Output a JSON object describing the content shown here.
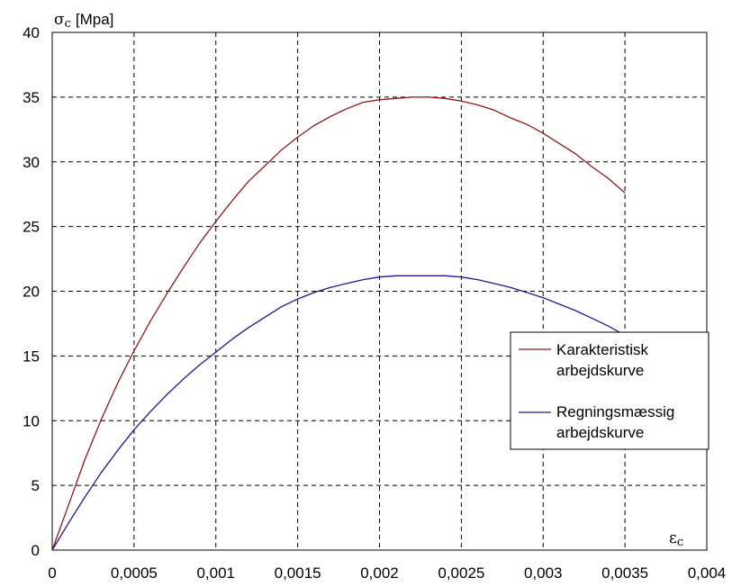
{
  "chart_data": {
    "type": "line",
    "ylabel": {
      "symbol": "σ",
      "subscript": "c",
      "unit": "[Mpa]"
    },
    "xlabel": {
      "symbol": "ε",
      "subscript": "c"
    },
    "xlim": [
      0,
      0.004
    ],
    "ylim": [
      0,
      40
    ],
    "xticks": [
      "0",
      "0,0005",
      "0,001",
      "0,0015",
      "0,002",
      "0,0025",
      "0,003",
      "0,0035",
      "0,004"
    ],
    "yticks": [
      "0",
      "5",
      "10",
      "15",
      "20",
      "25",
      "30",
      "35",
      "40"
    ],
    "grid": true,
    "legend_position": "right",
    "series": [
      {
        "name": [
          "Karakteristisk",
          "arbejdskurve"
        ],
        "color": "#8b1a1a",
        "x": [
          0,
          0.0001,
          0.0002,
          0.0003,
          0.0004,
          0.0005,
          0.0006,
          0.0007,
          0.0008,
          0.0009,
          0.001,
          0.0011,
          0.0012,
          0.0013,
          0.0014,
          0.0015,
          0.0016,
          0.0017,
          0.0018,
          0.0019,
          0.002,
          0.0021,
          0.0022,
          0.0023,
          0.0024,
          0.0025,
          0.0026,
          0.0027,
          0.0028,
          0.0029,
          0.003,
          0.0031,
          0.0032,
          0.0033,
          0.0034,
          0.0035
        ],
        "y": [
          0,
          3.5,
          7.0,
          10.1,
          12.9,
          15.4,
          17.7,
          19.8,
          21.8,
          23.7,
          25.4,
          27.0,
          28.5,
          29.7,
          30.9,
          31.9,
          32.8,
          33.5,
          34.1,
          34.6,
          34.8,
          34.9,
          35.0,
          35.0,
          34.9,
          34.7,
          34.4,
          34.0,
          33.4,
          32.9,
          32.2,
          31.4,
          30.6,
          29.6,
          28.7,
          27.6
        ]
      },
      {
        "name": [
          "Regningsmæssig",
          "arbejdskurve"
        ],
        "color": "#1a1a8b",
        "x": [
          0,
          0.0001,
          0.0002,
          0.0003,
          0.0004,
          0.0005,
          0.0006,
          0.0007,
          0.0008,
          0.0009,
          0.001,
          0.0011,
          0.0012,
          0.0013,
          0.0014,
          0.0015,
          0.0016,
          0.0017,
          0.0018,
          0.0019,
          0.002,
          0.0021,
          0.0022,
          0.0023,
          0.0024,
          0.0025,
          0.0026,
          0.0027,
          0.0028,
          0.0029,
          0.003,
          0.0031,
          0.0032,
          0.0033,
          0.0034,
          0.0035
        ],
        "y": [
          0,
          2.1,
          4.1,
          6.0,
          7.7,
          9.3,
          10.7,
          12.0,
          13.2,
          14.3,
          15.3,
          16.3,
          17.2,
          18.0,
          18.8,
          19.4,
          19.9,
          20.3,
          20.6,
          20.9,
          21.1,
          21.2,
          21.2,
          21.2,
          21.2,
          21.1,
          20.9,
          20.6,
          20.3,
          19.9,
          19.5,
          19.0,
          18.5,
          17.9,
          17.3,
          16.6
        ]
      }
    ]
  }
}
